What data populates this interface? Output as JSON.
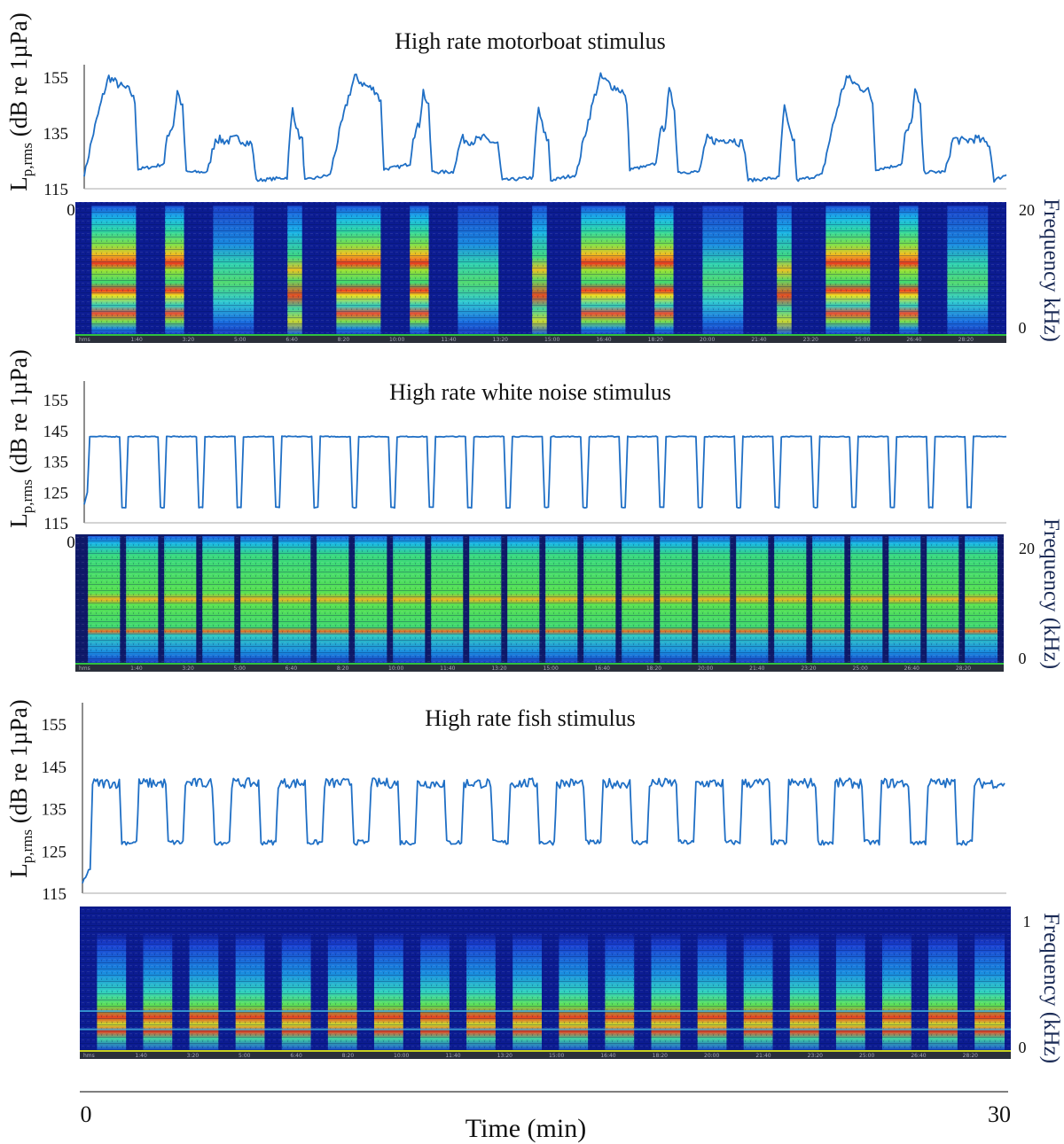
{
  "chart_data": [
    {
      "type": "line",
      "title": "High rate motorboat stimulus",
      "ylabel": {
        "main": "L",
        "sub": "p,rms",
        "rest": "(dB re 1µPa)"
      },
      "yticks": [
        115,
        135,
        155
      ],
      "ylim": [
        115,
        155
      ],
      "xlim": [
        0,
        30
      ],
      "x_tick_start": "0",
      "color": "#1f6fc5",
      "series": {
        "x": [
          0,
          0.3,
          0.6,
          0.8,
          1.15,
          1.5,
          1.65,
          1.75,
          2.3,
          2.6,
          2.7,
          2.9,
          3.03,
          3.2,
          3.32,
          4,
          4.27,
          4.6,
          5,
          5.45,
          5.6,
          6.6,
          6.7,
          6.78,
          6.95,
          7.1,
          7.18,
          8,
          8.3,
          8.6,
          8.8,
          9.15,
          9.5,
          9.65,
          9.75,
          10.3,
          10.6,
          10.7,
          10.9,
          11.03,
          11.2,
          11.32,
          12,
          12.27,
          12.6,
          13,
          13.45,
          13.6,
          14.6,
          14.7,
          14.78,
          14.95,
          15.1,
          15.18,
          16,
          16.3,
          16.6,
          16.8,
          17.15,
          17.5,
          17.65,
          17.75,
          18.3,
          18.6,
          18.7,
          18.9,
          19.03,
          19.2,
          19.32,
          20,
          20.27,
          20.6,
          21,
          21.45,
          21.6,
          22.6,
          22.7,
          22.78,
          22.95,
          23.1,
          23.18,
          24,
          24.3,
          24.6,
          24.8,
          25.15,
          25.5,
          25.65,
          25.75,
          26.3,
          26.6,
          26.7,
          26.9,
          27.03,
          27.2,
          27.32,
          28,
          28.27,
          28.6,
          29,
          29.45,
          29.6,
          30
        ],
        "y": [
          120,
          135,
          148,
          155,
          152,
          150,
          146,
          122,
          123,
          124,
          134,
          138,
          150,
          144,
          121,
          121,
          133,
          132,
          133,
          131,
          118,
          119,
          135,
          144,
          135,
          132,
          118,
          120,
          135,
          148,
          155,
          152,
          150,
          146,
          122,
          123,
          124,
          134,
          138,
          150,
          144,
          121,
          121,
          133,
          132,
          133,
          131,
          118,
          119,
          135,
          144,
          135,
          132,
          118,
          120,
          135,
          148,
          155,
          152,
          150,
          146,
          122,
          123,
          124,
          134,
          138,
          150,
          144,
          121,
          121,
          133,
          132,
          133,
          131,
          118,
          119,
          135,
          144,
          135,
          132,
          118,
          120,
          135,
          148,
          155,
          152,
          150,
          146,
          122,
          123,
          124,
          134,
          138,
          150,
          144,
          121,
          121,
          133,
          132,
          133,
          131,
          118,
          120
        ]
      },
      "spectrogram": {
        "type": "heatmap",
        "freq_ticks": [
          "20",
          "0"
        ],
        "freq_label": "Frequency kHz)",
        "colormap": "jet"
      }
    },
    {
      "type": "line",
      "title": "High rate white noise stimulus",
      "ylabel": {
        "main": "L",
        "sub": "p,rms",
        "rest": "(dB re 1µPa)"
      },
      "yticks": [
        115,
        125,
        135,
        145,
        155
      ],
      "ylim": [
        115,
        155
      ],
      "xlim": [
        0,
        30
      ],
      "x_tick_start": "0",
      "color": "#1f6fc5",
      "series": {
        "pattern": "on-off",
        "start_level": 121,
        "on_level": 143,
        "off_level": 120,
        "first_onset_min": 0.1,
        "cycle_min": 1.25,
        "on_min": 1.05,
        "cycles": 24
      },
      "spectrogram": {
        "type": "heatmap",
        "freq_ticks": [
          "20",
          "0"
        ],
        "freq_label": "Frequency (kHz)",
        "colormap": "jet"
      }
    },
    {
      "type": "line",
      "title": "High rate fish stimulus",
      "ylabel": {
        "main": "L",
        "sub": "p,rms",
        "rest": "(dB re 1µPa)"
      },
      "yticks": [
        115,
        125,
        135,
        145,
        155
      ],
      "ylim": [
        115,
        155
      ],
      "xlim": [
        0,
        30
      ],
      "color": "#1f6fc5",
      "series": {
        "pattern": "on-off",
        "start_level": 117,
        "on_level": 141,
        "off_level": 127,
        "first_onset_min": 0.25,
        "cycle_min": 1.51,
        "on_min": 0.95,
        "cycles": 20
      },
      "spectrogram": {
        "type": "heatmap",
        "freq_ticks": [
          "1",
          "0"
        ],
        "freq_label": "Frequency (kHz)",
        "colormap": "jet"
      }
    }
  ],
  "spectrogram_time_labels": [
    "hms",
    "1:40",
    "3:20",
    "5:00",
    "6:40",
    "8:20",
    "10:00",
    "11:40",
    "13:20",
    "15:00",
    "16:40",
    "18:20",
    "20:00",
    "21:40",
    "23:20",
    "25:00",
    "26:40",
    "28:20"
  ],
  "time_axis": {
    "label": "Time (min)",
    "start": "0",
    "end": "30"
  }
}
